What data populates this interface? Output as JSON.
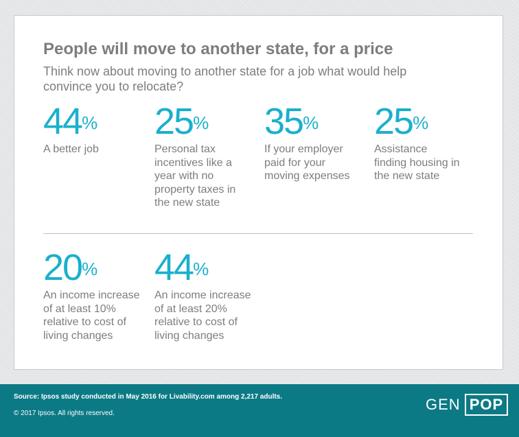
{
  "title": "People will move to another state, for a price",
  "subtitle": "Think now about moving to another state for a job what would help convince you to relocate?",
  "chart_data": {
    "type": "table",
    "unit": "%",
    "items": [
      {
        "value": 44,
        "label": "A better job"
      },
      {
        "value": 25,
        "label": "Personal tax incentives like a year with no property taxes in the new state"
      },
      {
        "value": 35,
        "label": "If your employer paid for your moving expenses"
      },
      {
        "value": 25,
        "label": "Assistance finding housing in the new state"
      },
      {
        "value": 20,
        "label": "An income increase of at least 10% relative to cost of living changes"
      },
      {
        "value": 44,
        "label": "An income increase of at least 20% relative to cost of living changes"
      }
    ]
  },
  "footer": {
    "source": "Source: Ipsos study conducted in May 2016 for Livability.com among 2,217 adults.",
    "copyright": "© 2017 Ipsos. All rights reserved.",
    "logo_left": "GEN",
    "logo_right": "POP"
  },
  "colors": {
    "accent": "#1ab0cc",
    "text": "#7b7d80",
    "footer_bg": "#0c7a85"
  }
}
